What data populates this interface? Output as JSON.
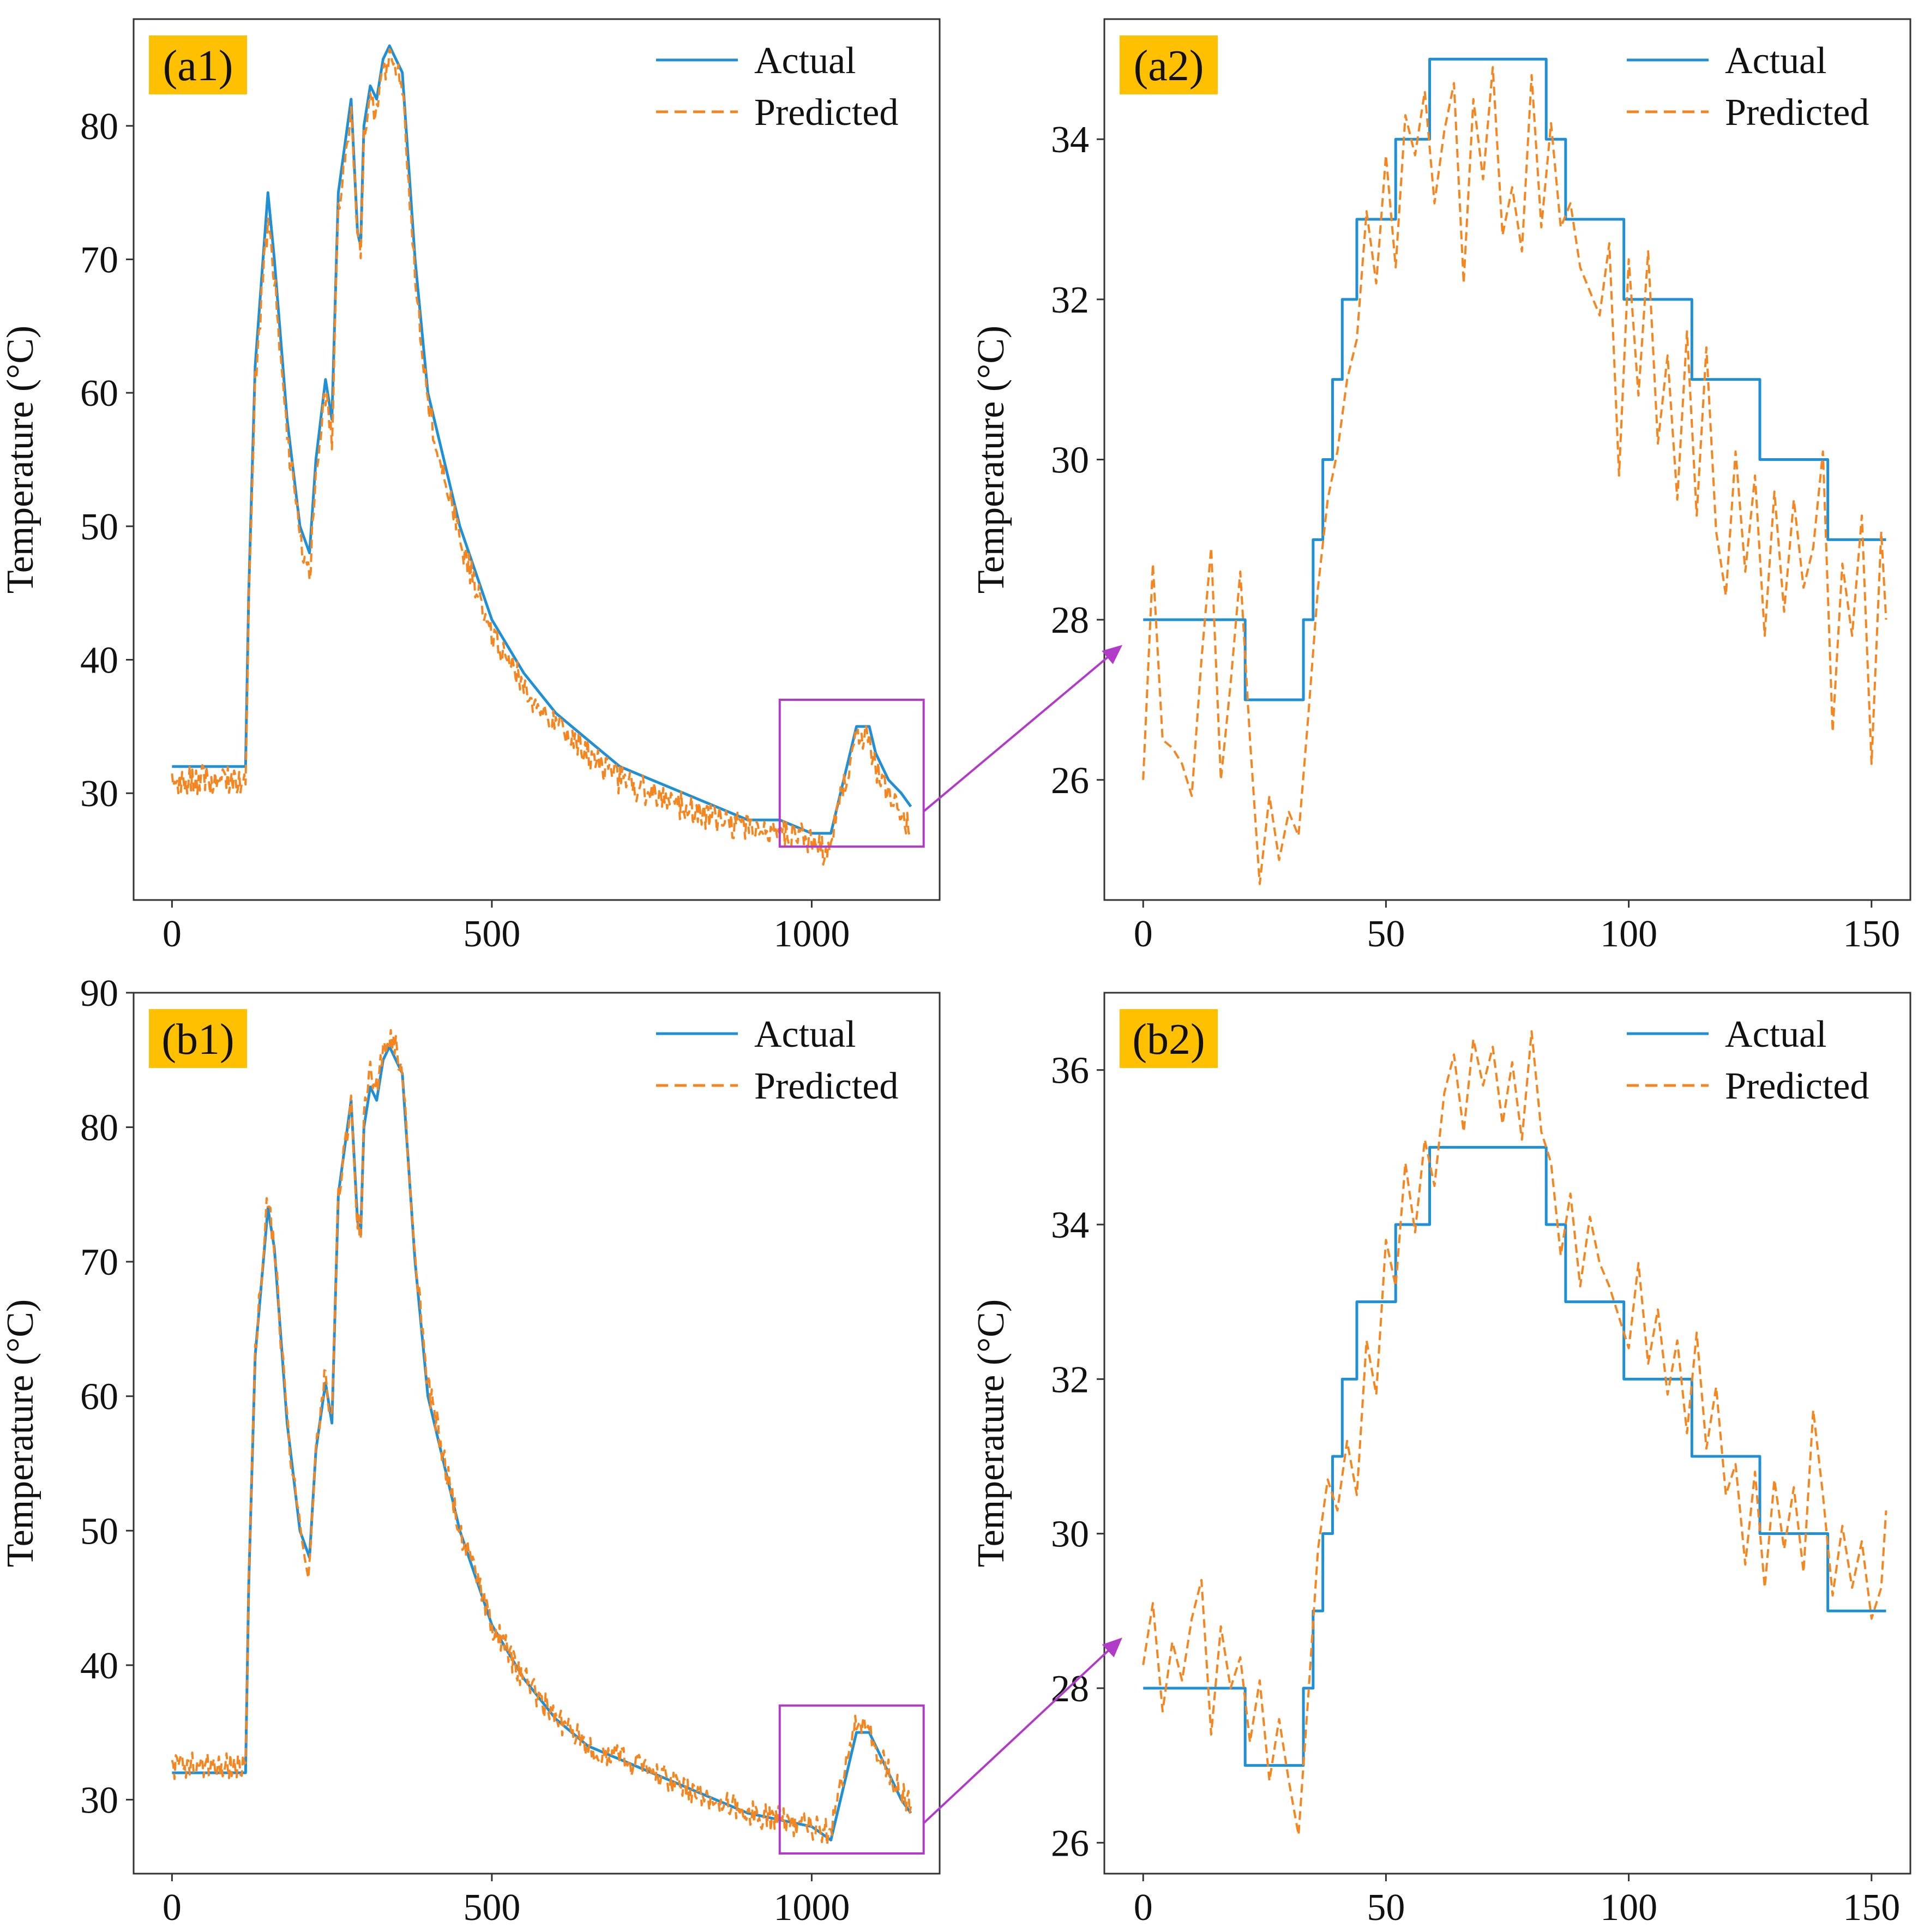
{
  "colors": {
    "actual": "#1f8fd6",
    "predicted": "#f5861f",
    "label_bg": "#ffc000",
    "zoom_box": "#b23ac9",
    "axis": "#333333"
  },
  "chart_data": [
    {
      "panel_label": "(a1)",
      "type": "line",
      "ylabel": "Temperature (°C)",
      "xlabel": "",
      "xlim": [
        -60,
        1200
      ],
      "ylim": [
        22,
        88
      ],
      "xticks": [
        0,
        500,
        1000
      ],
      "yticks": [
        30,
        40,
        50,
        60,
        70,
        80
      ],
      "legend": {
        "position": "top-right",
        "entries": [
          "Actual",
          "Predicted"
        ]
      },
      "zoom_region": {
        "x": [
          950,
          1175
        ],
        "y": [
          26,
          37
        ]
      },
      "series": [
        {
          "name": "Actual",
          "style": "solid",
          "x": [
            0,
            115,
            120,
            130,
            150,
            160,
            180,
            200,
            215,
            225,
            240,
            250,
            260,
            280,
            290,
            295,
            300,
            310,
            320,
            330,
            340,
            350,
            360,
            380,
            400,
            450,
            500,
            550,
            600,
            650,
            700,
            750,
            800,
            850,
            900,
            950,
            1000,
            1030,
            1045,
            1060,
            1070,
            1090,
            1100,
            1120,
            1140,
            1155
          ],
          "y": [
            32,
            32,
            45,
            62,
            75,
            70,
            58,
            50,
            48,
            55,
            61,
            58,
            75,
            82,
            72,
            71,
            80,
            83,
            82,
            85,
            86,
            85,
            84,
            70,
            60,
            50,
            43,
            39,
            36,
            34,
            32,
            31,
            30,
            29,
            28,
            28,
            27,
            27,
            30,
            33,
            35,
            35,
            33,
            31,
            30,
            29
          ]
        },
        {
          "name": "Predicted",
          "style": "dashed",
          "noise": 1.1,
          "x": [
            0,
            115,
            120,
            130,
            150,
            160,
            180,
            200,
            215,
            225,
            240,
            250,
            260,
            280,
            290,
            295,
            300,
            310,
            320,
            330,
            340,
            350,
            360,
            380,
            400,
            450,
            500,
            550,
            600,
            650,
            700,
            750,
            800,
            850,
            900,
            950,
            1000,
            1020,
            1030,
            1045,
            1060,
            1070,
            1090,
            1100,
            1120,
            1140,
            1155
          ],
          "y": [
            31,
            31,
            44,
            61,
            73,
            69,
            57,
            49,
            46,
            54,
            60,
            56,
            74,
            81,
            71,
            70,
            79,
            82,
            81,
            84,
            85,
            84,
            83,
            69,
            59,
            49,
            42,
            38,
            35,
            33,
            31,
            30,
            29,
            28,
            27.5,
            27,
            26.5,
            25.5,
            26,
            29.5,
            32.5,
            34.5,
            34,
            32,
            30,
            28.5,
            27
          ]
        }
      ]
    },
    {
      "panel_label": "(a2)",
      "type": "line",
      "ylabel": "Temperature (°C)",
      "xlabel": "",
      "xlim": [
        -8,
        158
      ],
      "ylim": [
        24.5,
        35.5
      ],
      "xticks": [
        0,
        50,
        100,
        150
      ],
      "yticks": [
        26,
        28,
        30,
        32,
        34
      ],
      "legend": {
        "position": "top-right",
        "entries": [
          "Actual",
          "Predicted"
        ]
      },
      "series": [
        {
          "name": "Actual",
          "style": "solid",
          "step": true,
          "x": [
            0,
            21,
            33,
            35,
            37,
            39,
            41,
            44,
            47,
            52,
            57,
            59,
            83,
            87,
            98,
            99,
            112,
            113,
            126,
            127,
            140,
            141,
            153
          ],
          "y": [
            28,
            27,
            28,
            29,
            30,
            31,
            32,
            33,
            33,
            34,
            34,
            35,
            34,
            33,
            33,
            32,
            32,
            31,
            31,
            30,
            30,
            29,
            29
          ]
        },
        {
          "name": "Predicted",
          "style": "dashed",
          "x": [
            0,
            2,
            4,
            6,
            8,
            10,
            12,
            14,
            16,
            18,
            20,
            22,
            24,
            26,
            28,
            30,
            32,
            34,
            36,
            38,
            40,
            42,
            44,
            46,
            48,
            50,
            52,
            54,
            56,
            58,
            60,
            62,
            64,
            66,
            68,
            70,
            72,
            74,
            76,
            78,
            80,
            82,
            84,
            86,
            88,
            90,
            92,
            94,
            96,
            98,
            100,
            102,
            104,
            106,
            108,
            110,
            112,
            114,
            116,
            118,
            120,
            122,
            124,
            126,
            128,
            130,
            132,
            134,
            136,
            138,
            140,
            142,
            144,
            146,
            148,
            150,
            152,
            153
          ],
          "y": [
            26,
            28.7,
            26.5,
            26.4,
            26.2,
            25.8,
            27.5,
            28.9,
            26,
            27.2,
            28.6,
            26.5,
            24.7,
            25.8,
            25,
            25.6,
            25.3,
            26.8,
            28.4,
            29.5,
            30.1,
            31,
            31.5,
            33.1,
            32.2,
            33.8,
            32.4,
            34.3,
            33.8,
            34.6,
            33.2,
            34.1,
            34.7,
            32.2,
            34.5,
            33.5,
            34.9,
            32.8,
            33.4,
            32.6,
            34.8,
            32.9,
            34.2,
            32.9,
            33.2,
            32.4,
            32.1,
            31.8,
            32.7,
            29.8,
            32.5,
            30.8,
            32.6,
            30.2,
            31.3,
            29.5,
            31.6,
            29.3,
            31.4,
            29.1,
            28.3,
            30.1,
            28.6,
            29.8,
            27.8,
            29.6,
            28.1,
            29.5,
            28.4,
            28.9,
            30.1,
            26.6,
            28.7,
            27.8,
            29.3,
            26.2,
            29.1,
            28
          ]
        }
      ]
    },
    {
      "panel_label": "(b1)",
      "type": "line",
      "ylabel": "Temperature (°C)",
      "xlabel": "",
      "xlim": [
        -60,
        1200
      ],
      "ylim": [
        24.5,
        90
      ],
      "xticks": [
        0,
        500,
        1000
      ],
      "yticks": [
        30,
        40,
        50,
        60,
        70,
        80,
        90
      ],
      "legend": {
        "position": "top-right",
        "entries": [
          "Actual",
          "Predicted"
        ]
      },
      "zoom_region": {
        "x": [
          950,
          1175
        ],
        "y": [
          26,
          37
        ]
      },
      "series": [
        {
          "name": "Actual",
          "style": "solid",
          "x": [
            0,
            115,
            120,
            130,
            150,
            160,
            180,
            200,
            215,
            225,
            240,
            250,
            260,
            280,
            290,
            295,
            300,
            310,
            320,
            330,
            340,
            350,
            360,
            380,
            400,
            450,
            500,
            550,
            600,
            650,
            700,
            750,
            800,
            850,
            900,
            950,
            1000,
            1030,
            1045,
            1060,
            1070,
            1090,
            1100,
            1120,
            1140,
            1155
          ],
          "y": [
            32,
            32,
            46,
            63,
            74,
            71,
            58,
            50,
            48,
            56,
            61,
            58,
            75,
            82,
            73,
            72,
            80,
            83,
            82,
            85,
            86,
            85,
            84,
            70,
            60,
            50,
            43,
            39,
            36,
            34,
            33,
            32,
            31,
            30,
            29,
            28.5,
            28,
            27,
            30,
            33,
            35,
            35,
            34,
            32,
            30,
            29
          ]
        },
        {
          "name": "Predicted",
          "style": "dashed",
          "noise": 1.0,
          "x": [
            0,
            115,
            120,
            130,
            150,
            160,
            180,
            200,
            215,
            225,
            240,
            250,
            260,
            280,
            290,
            295,
            300,
            310,
            320,
            330,
            340,
            350,
            360,
            380,
            400,
            450,
            500,
            550,
            600,
            650,
            700,
            750,
            800,
            850,
            900,
            950,
            1000,
            1030,
            1045,
            1060,
            1070,
            1090,
            1100,
            1120,
            1140,
            1155
          ],
          "y": [
            32.5,
            32.5,
            46,
            63,
            75,
            71,
            58,
            50,
            47,
            56,
            62,
            58,
            75,
            82,
            73,
            72,
            81,
            84,
            83,
            86,
            87,
            86,
            84,
            70,
            61,
            50,
            43,
            39,
            36,
            34,
            33,
            32,
            31,
            30,
            29,
            28.5,
            28,
            27.5,
            31,
            34,
            36,
            35.5,
            34,
            32,
            30.5,
            29.5
          ]
        }
      ]
    },
    {
      "panel_label": "(b2)",
      "type": "line",
      "ylabel": "Temperature (°C)",
      "xlabel": "",
      "xlim": [
        -8,
        158
      ],
      "ylim": [
        25.6,
        37
      ],
      "xticks": [
        0,
        50,
        100,
        150
      ],
      "yticks": [
        26,
        28,
        30,
        32,
        34,
        36
      ],
      "legend": {
        "position": "top-right",
        "entries": [
          "Actual",
          "Predicted"
        ]
      },
      "series": [
        {
          "name": "Actual",
          "style": "solid",
          "step": true,
          "x": [
            0,
            21,
            33,
            35,
            37,
            39,
            41,
            44,
            47,
            52,
            57,
            59,
            83,
            87,
            98,
            99,
            112,
            113,
            126,
            127,
            140,
            141,
            153
          ],
          "y": [
            28,
            27,
            28,
            29,
            30,
            31,
            32,
            33,
            33,
            34,
            34,
            35,
            34,
            33,
            33,
            32,
            32,
            31,
            31,
            30,
            30,
            29,
            29
          ]
        },
        {
          "name": "Predicted",
          "style": "dashed",
          "x": [
            0,
            2,
            4,
            6,
            8,
            10,
            12,
            14,
            16,
            18,
            20,
            22,
            24,
            26,
            28,
            30,
            32,
            34,
            36,
            38,
            40,
            42,
            44,
            46,
            48,
            50,
            52,
            54,
            56,
            58,
            60,
            62,
            64,
            66,
            68,
            70,
            72,
            74,
            76,
            78,
            80,
            82,
            84,
            86,
            88,
            90,
            92,
            94,
            96,
            98,
            100,
            102,
            104,
            106,
            108,
            110,
            112,
            114,
            116,
            118,
            120,
            122,
            124,
            126,
            128,
            130,
            132,
            134,
            136,
            138,
            140,
            142,
            144,
            146,
            148,
            150,
            152,
            153
          ],
          "y": [
            28.3,
            29.1,
            27.7,
            28.6,
            28.1,
            28.9,
            29.4,
            27.4,
            28.8,
            28,
            28.4,
            27.3,
            28.1,
            26.8,
            27.6,
            26.8,
            26.1,
            27.9,
            29.8,
            30.7,
            30.3,
            31.2,
            30.5,
            32.5,
            31.8,
            33.8,
            33.2,
            34.8,
            33.9,
            35.1,
            34.5,
            35.7,
            36.2,
            35.2,
            36.4,
            35.8,
            36.3,
            35.3,
            36.1,
            35.1,
            36.5,
            35.2,
            34.8,
            33.6,
            34.4,
            33.2,
            34.1,
            33.5,
            33.2,
            32.8,
            32.4,
            33.5,
            32.2,
            32.9,
            31.8,
            32.5,
            31.3,
            32.6,
            31.1,
            31.9,
            30.5,
            30.9,
            29.6,
            30.8,
            29.3,
            30.7,
            29.8,
            30.6,
            29.5,
            31.6,
            30.5,
            29.2,
            30.1,
            29.3,
            29.9,
            28.9,
            29.3,
            30.3
          ]
        }
      ]
    }
  ]
}
